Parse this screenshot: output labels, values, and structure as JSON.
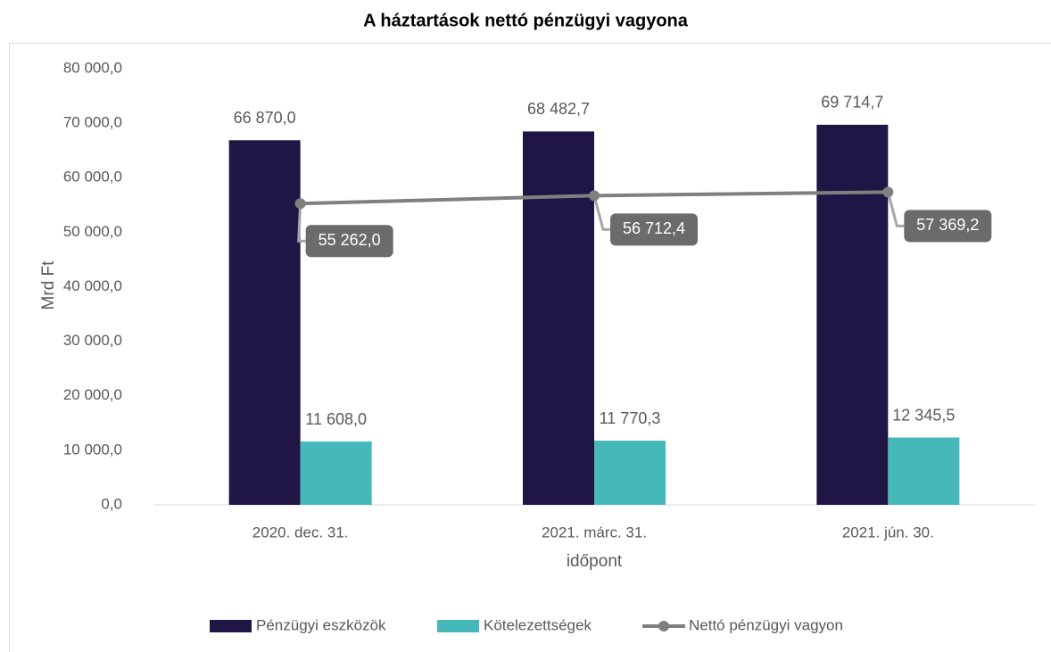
{
  "chart_data": {
    "type": "bar",
    "title": "A háztartások nettó pénzügyi vagyona",
    "ylabel": "Mrd Ft",
    "xlabel": "időpont",
    "categories": [
      "2020. dec. 31.",
      "2021. márc. 31.",
      "2021. jún. 30."
    ],
    "series": [
      {
        "name": "Pénzügyi eszközök",
        "type": "bar",
        "color": "#1f1646",
        "values": [
          66870.0,
          68482.7,
          69714.7
        ],
        "value_labels": [
          "66 870,0",
          "68 482,7",
          "69 714,7"
        ]
      },
      {
        "name": "Kötelezettségek",
        "type": "bar",
        "color": "#45b9b9",
        "values": [
          11608.0,
          11770.3,
          12345.5
        ],
        "value_labels": [
          "11 608,0",
          "11 770,3",
          "12 345,5"
        ]
      },
      {
        "name": "Nettó pénzügyi vagyon",
        "type": "line",
        "color": "#7f7f7f",
        "values": [
          55262.0,
          56712.4,
          57369.2
        ],
        "value_labels": [
          "55 262,0",
          "56 712,4",
          "57 369,2"
        ]
      }
    ],
    "ylim": [
      0,
      80000
    ],
    "yticks": [
      {
        "value": 0,
        "label": "0,0"
      },
      {
        "value": 10000,
        "label": "10 000,0"
      },
      {
        "value": 20000,
        "label": "20 000,0"
      },
      {
        "value": 30000,
        "label": "30 000,0"
      },
      {
        "value": 40000,
        "label": "40 000,0"
      },
      {
        "value": 50000,
        "label": "50 000,0"
      },
      {
        "value": 60000,
        "label": "60 000,0"
      },
      {
        "value": 70000,
        "label": "70 000,0"
      },
      {
        "value": 80000,
        "label": "80 000,0"
      }
    ],
    "legend": "bottom"
  }
}
